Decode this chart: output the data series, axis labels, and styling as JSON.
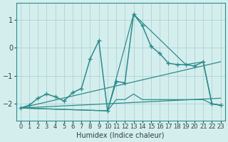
{
  "xlabel": "Humidex (Indice chaleur)",
  "bg_color": "#d4eeee",
  "grid_color": "#aacccc",
  "line_color": "#2e8b8b",
  "xlim": [
    -0.5,
    23.5
  ],
  "ylim": [
    -2.6,
    1.6
  ],
  "xticks": [
    0,
    1,
    2,
    3,
    4,
    5,
    6,
    7,
    8,
    9,
    10,
    11,
    12,
    13,
    14,
    15,
    16,
    17,
    18,
    19,
    20,
    21,
    22,
    23
  ],
  "yticks": [
    -2,
    -1,
    0,
    1
  ],
  "series": [
    {
      "x": [
        0,
        1,
        2,
        3,
        4,
        5,
        6,
        7,
        8,
        9,
        10,
        11,
        12,
        13,
        14,
        15,
        16,
        17,
        18,
        19,
        20,
        21,
        22,
        23
      ],
      "y": [
        -2.15,
        -2.05,
        -1.8,
        -1.65,
        -1.75,
        -1.9,
        -1.6,
        -1.45,
        -0.4,
        0.25,
        -2.25,
        -1.2,
        -1.25,
        1.2,
        0.8,
        0.05,
        -0.2,
        -0.55,
        -0.6,
        -0.6,
        -0.65,
        -0.5,
        -2.0,
        -2.05
      ],
      "style": "-",
      "marker": "+",
      "markersize": 5,
      "linewidth": 1.1,
      "zorder": 3
    },
    {
      "x": [
        0,
        10,
        11,
        12,
        13,
        14,
        15,
        16,
        17,
        18,
        19,
        20,
        21,
        22,
        23
      ],
      "y": [
        -2.15,
        -2.25,
        -1.85,
        -1.85,
        -1.65,
        -1.85,
        -1.85,
        -1.85,
        -1.85,
        -1.85,
        -1.85,
        -1.85,
        -1.85,
        -2.0,
        -2.05
      ],
      "style": "-",
      "marker": null,
      "markersize": 0,
      "linewidth": 0.9,
      "zorder": 2
    },
    {
      "x": [
        0,
        10,
        13,
        19,
        21,
        22,
        23
      ],
      "y": [
        -2.15,
        -2.25,
        1.2,
        -0.6,
        -0.5,
        -2.0,
        -2.05
      ],
      "style": "-",
      "marker": null,
      "markersize": 0,
      "linewidth": 0.9,
      "zorder": 2
    },
    {
      "x": [
        0,
        23
      ],
      "y": [
        -2.15,
        -0.5
      ],
      "style": "-",
      "marker": null,
      "markersize": 0,
      "linewidth": 0.9,
      "zorder": 1
    },
    {
      "x": [
        0,
        23
      ],
      "y": [
        -2.15,
        -1.8
      ],
      "style": "-",
      "marker": null,
      "markersize": 0,
      "linewidth": 0.9,
      "zorder": 1
    }
  ]
}
